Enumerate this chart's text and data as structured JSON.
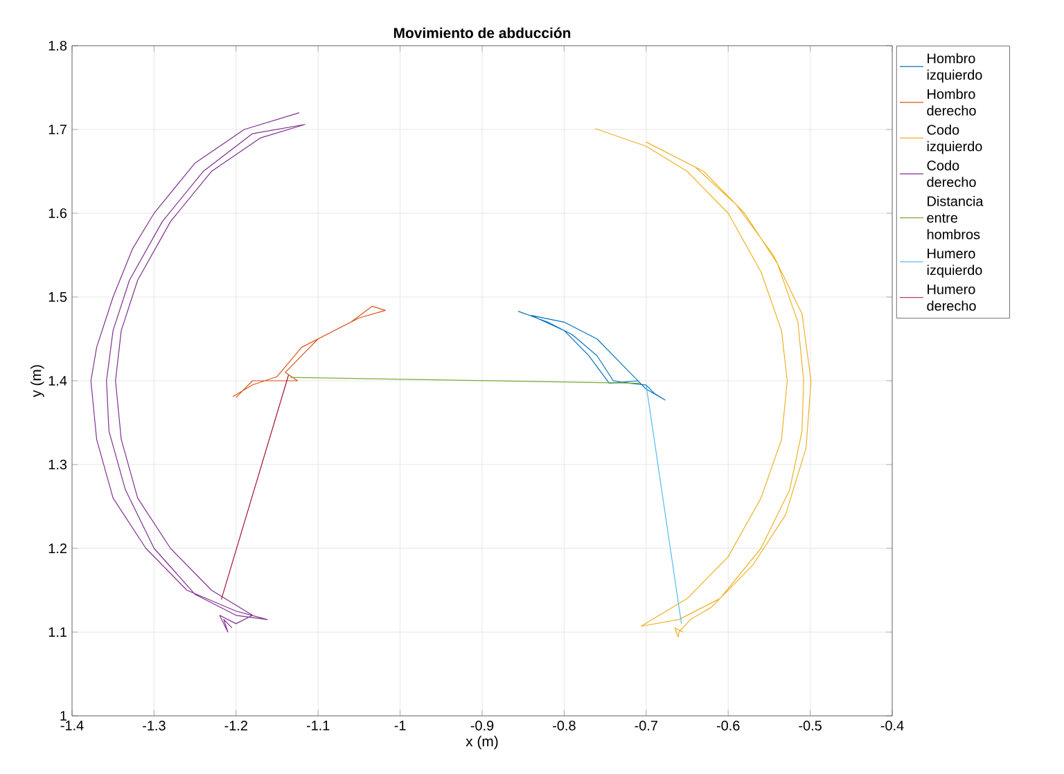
{
  "chart_data": {
    "type": "line",
    "title": "Movimiento de abducción",
    "xlabel": "x (m)",
    "ylabel": "y (m)",
    "xlim": [
      -1.4,
      -0.4
    ],
    "ylim": [
      1,
      1.8
    ],
    "xticks": [
      -1.4,
      -1.3,
      -1.2,
      -1.1,
      -1,
      -0.9,
      -0.8,
      -0.7,
      -0.6,
      -0.5,
      -0.4
    ],
    "yticks": [
      1,
      1.1,
      1.2,
      1.3,
      1.4,
      1.5,
      1.6,
      1.7,
      1.8
    ],
    "grid": true,
    "legend": "top right",
    "marker": "none",
    "line_style": "solid",
    "series": [
      {
        "name": "Hombro izquierdo",
        "color": "#0072bd",
        "x": [
          -0.856,
          -0.82,
          -0.79,
          -0.76,
          -0.74,
          -0.72,
          -0.7,
          -0.69,
          -0.677,
          -0.7,
          -0.73,
          -0.76,
          -0.8,
          -0.84,
          -0.8,
          -0.77,
          -0.745,
          -0.71,
          -0.7
        ],
        "values": [
          1.483,
          1.47,
          1.455,
          1.43,
          1.4,
          1.397,
          1.395,
          1.385,
          1.377,
          1.39,
          1.42,
          1.45,
          1.47,
          1.478,
          1.46,
          1.43,
          1.397,
          1.4,
          1.39
        ]
      },
      {
        "name": "Hombro derecho",
        "color": "#d95319",
        "x": [
          -1.204,
          -1.18,
          -1.15,
          -1.12,
          -1.06,
          -1.034,
          -1.018,
          -1.05,
          -1.1,
          -1.14,
          -1.125,
          -1.18,
          -1.19,
          -1.2
        ],
        "values": [
          1.381,
          1.395,
          1.405,
          1.44,
          1.47,
          1.489,
          1.484,
          1.475,
          1.45,
          1.41,
          1.4,
          1.4,
          1.39,
          1.38
        ]
      },
      {
        "name": "Codo izquierdo",
        "color": "#edb120",
        "x": [
          -0.762,
          -0.7,
          -0.65,
          -0.6,
          -0.56,
          -0.535,
          -0.528,
          -0.535,
          -0.56,
          -0.6,
          -0.65,
          -0.706,
          -0.66,
          -0.61,
          -0.56,
          -0.525,
          -0.51,
          -0.508,
          -0.515,
          -0.54,
          -0.58,
          -0.63,
          -0.7,
          -0.64,
          -0.59,
          -0.545,
          -0.51,
          -0.499,
          -0.505,
          -0.53,
          -0.57,
          -0.62,
          -0.646,
          -0.66,
          -0.661,
          -0.665,
          -0.655
        ],
        "values": [
          1.701,
          1.68,
          1.65,
          1.6,
          1.53,
          1.46,
          1.4,
          1.33,
          1.26,
          1.19,
          1.14,
          1.107,
          1.115,
          1.14,
          1.2,
          1.27,
          1.34,
          1.4,
          1.47,
          1.54,
          1.6,
          1.65,
          1.685,
          1.655,
          1.61,
          1.55,
          1.48,
          1.4,
          1.32,
          1.24,
          1.18,
          1.13,
          1.115,
          1.1,
          1.094,
          1.105,
          1.1
        ]
      },
      {
        "name": "Codo derecho",
        "color": "#7e2f8e",
        "x": [
          -1.123,
          -1.19,
          -1.25,
          -1.3,
          -1.326,
          -1.35,
          -1.37,
          -1.377,
          -1.37,
          -1.35,
          -1.31,
          -1.26,
          -1.2,
          -1.162,
          -1.2,
          -1.25,
          -1.3,
          -1.335,
          -1.355,
          -1.358,
          -1.35,
          -1.33,
          -1.29,
          -1.24,
          -1.18,
          -1.116,
          -1.17,
          -1.23,
          -1.28,
          -1.32,
          -1.34,
          -1.347,
          -1.34,
          -1.32,
          -1.28,
          -1.23,
          -1.18,
          -1.2,
          -1.22,
          -1.21,
          -1.215,
          -1.205
        ],
        "values": [
          1.72,
          1.7,
          1.66,
          1.6,
          1.558,
          1.5,
          1.44,
          1.4,
          1.33,
          1.26,
          1.2,
          1.15,
          1.125,
          1.115,
          1.12,
          1.145,
          1.2,
          1.27,
          1.34,
          1.4,
          1.46,
          1.52,
          1.59,
          1.65,
          1.695,
          1.706,
          1.69,
          1.65,
          1.59,
          1.52,
          1.46,
          1.4,
          1.33,
          1.26,
          1.2,
          1.15,
          1.12,
          1.11,
          1.12,
          1.1,
          1.115,
          1.105
        ]
      },
      {
        "name": "Distancia entre hombros",
        "color": "#77ac30",
        "x": [
          -1.134,
          -0.708
        ],
        "values": [
          1.404,
          1.397
        ]
      },
      {
        "name": "Humero izquierdo",
        "color": "#4dbeee",
        "x": [
          -0.7,
          -0.657
        ],
        "values": [
          1.395,
          1.11
        ]
      },
      {
        "name": "Humero derecho",
        "color": "#a2142f",
        "x": [
          -1.136,
          -1.218
        ],
        "values": [
          1.407,
          1.139
        ]
      }
    ]
  }
}
